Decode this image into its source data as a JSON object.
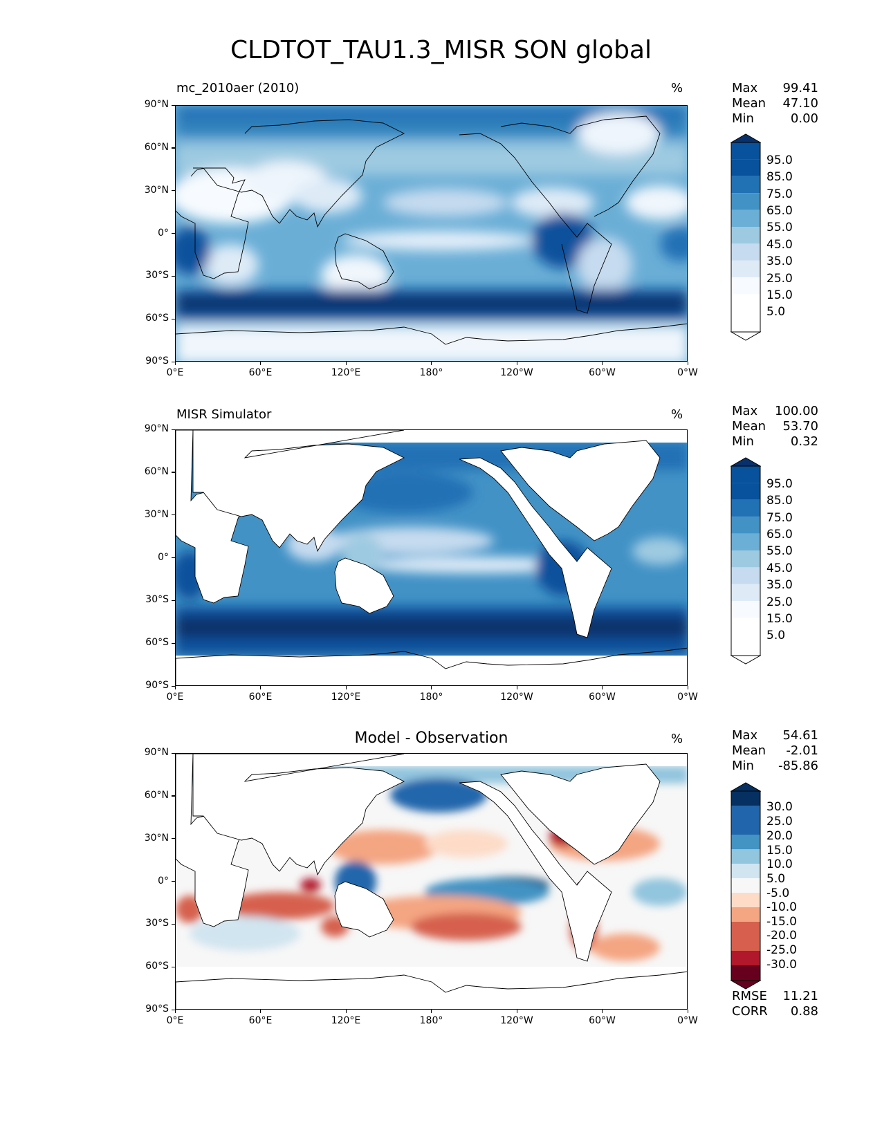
{
  "figure": {
    "title": "CLDTOT_TAU1.3_MISR SON global"
  },
  "lat_labels": [
    "90°N",
    "60°N",
    "30°N",
    "0°",
    "30°S",
    "60°S",
    "90°S"
  ],
  "lon_labels": [
    "0°E",
    "60°E",
    "120°E",
    "180°",
    "120°W",
    "60°W",
    "0°W"
  ],
  "panels": [
    {
      "title": "mc_2010aer (2010)",
      "title_style": "left",
      "unit": "%",
      "stats": [
        {
          "label": "Max",
          "value": "99.41"
        },
        {
          "label": "Mean",
          "value": "47.10"
        },
        {
          "label": "Min",
          "value": "0.00"
        }
      ],
      "colorbar": {
        "labels": [
          "95.0",
          "85.0",
          "75.0",
          "65.0",
          "55.0",
          "45.0",
          "35.0",
          "25.0",
          "15.0",
          "5.0"
        ],
        "colors": [
          "#08306b",
          "#08519c",
          "#2171b5",
          "#4292c6",
          "#6baed6",
          "#9ecae1",
          "#c6dbef",
          "#deebf7",
          "#f7fbff",
          "#ffffff"
        ]
      }
    },
    {
      "title": "MISR Simulator",
      "title_style": "left",
      "unit": "%",
      "stats": [
        {
          "label": "Max",
          "value": "100.00"
        },
        {
          "label": "Mean",
          "value": "53.70"
        },
        {
          "label": "Min",
          "value": "0.32"
        }
      ],
      "colorbar": {
        "labels": [
          "95.0",
          "85.0",
          "75.0",
          "65.0",
          "55.0",
          "45.0",
          "35.0",
          "25.0",
          "15.0",
          "5.0"
        ],
        "colors": [
          "#08306b",
          "#08519c",
          "#2171b5",
          "#4292c6",
          "#6baed6",
          "#9ecae1",
          "#c6dbef",
          "#deebf7",
          "#f7fbff",
          "#ffffff"
        ]
      }
    },
    {
      "title": "Model - Observation",
      "title_style": "center",
      "unit": "%",
      "stats": [
        {
          "label": "Max",
          "value": "54.61"
        },
        {
          "label": "Mean",
          "value": "-2.01"
        },
        {
          "label": "Min",
          "value": "-85.86"
        }
      ],
      "colorbar": {
        "labels": [
          "30.0",
          "25.0",
          "20.0",
          "15.0",
          "10.0",
          "5.0",
          "-5.0",
          "-10.0",
          "-15.0",
          "-20.0",
          "-25.0",
          "-30.0"
        ],
        "colors": [
          "#053061",
          "#2166ac",
          "#4393c3",
          "#92c5de",
          "#d1e5f0",
          "#f7f7f7",
          "#fddbc7",
          "#f4a582",
          "#d6604d",
          "#b2182b",
          "#67001f"
        ]
      },
      "metrics": [
        {
          "label": "RMSE",
          "value": "11.21"
        },
        {
          "label": "CORR",
          "value": "0.88"
        }
      ]
    }
  ]
}
